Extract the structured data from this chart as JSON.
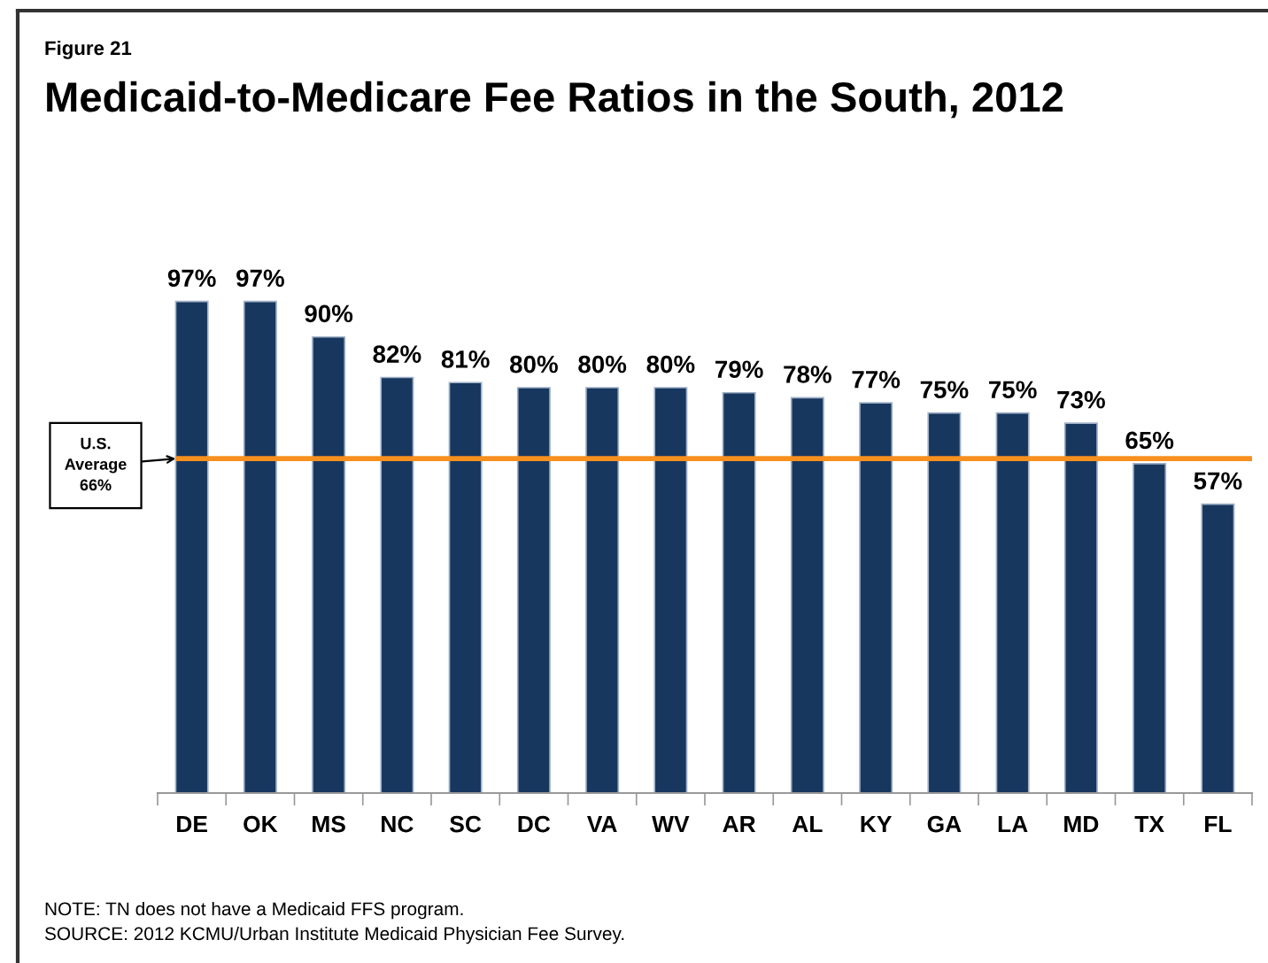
{
  "chart_data": {
    "type": "bar",
    "subtitle": "Figure 21",
    "title": "Medicaid-to-Medicare Fee Ratios in the South, 2012",
    "categories": [
      "DE",
      "OK",
      "MS",
      "NC",
      "SC",
      "DC",
      "VA",
      "WV",
      "AR",
      "AL",
      "KY",
      "GA",
      "LA",
      "MD",
      "TX",
      "FL"
    ],
    "values": [
      97,
      97,
      90,
      82,
      81,
      80,
      80,
      80,
      79,
      78,
      77,
      75,
      75,
      73,
      65,
      57
    ],
    "value_labels": [
      "97%",
      "97%",
      "90%",
      "82%",
      "81%",
      "80%",
      "80%",
      "80%",
      "79%",
      "78%",
      "77%",
      "75%",
      "75%",
      "73%",
      "65%",
      "57%"
    ],
    "color": "#17375e",
    "ref_lines": [
      {
        "axis": "y",
        "value": 66,
        "label": "U.S.\nAverage\n66%",
        "color": "#f7901e"
      }
    ],
    "annotations": [
      "NOTE: TN does not have a Medicaid FFS program.",
      "SOURCE: 2012 KCMU/Urban Institute Medicaid Physician Fee Survey."
    ]
  }
}
